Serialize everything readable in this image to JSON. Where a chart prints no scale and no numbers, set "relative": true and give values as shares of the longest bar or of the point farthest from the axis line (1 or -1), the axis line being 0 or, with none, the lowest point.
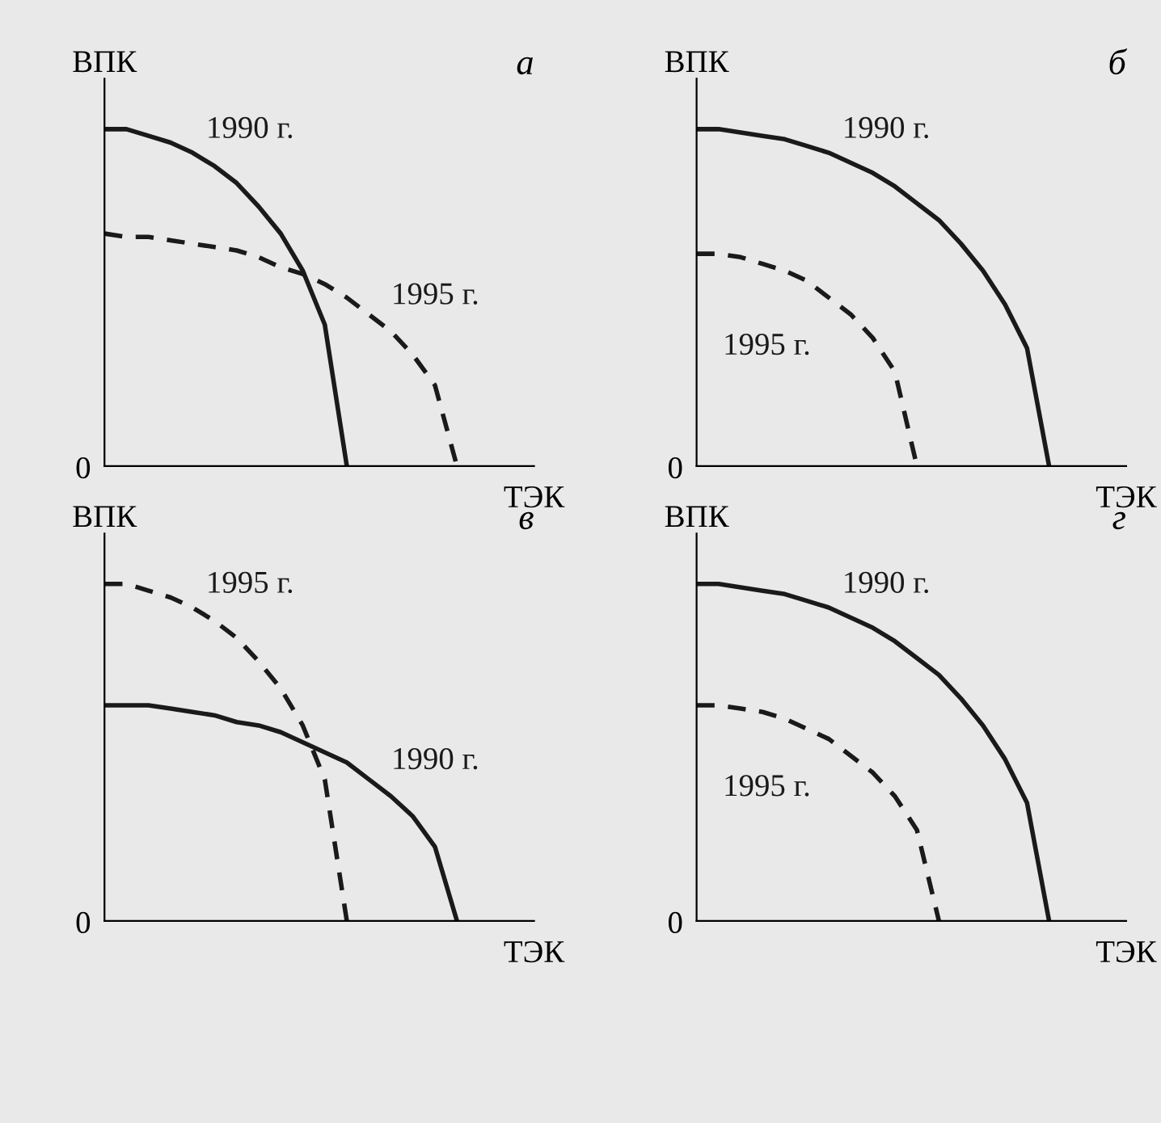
{
  "chart_data": [
    {
      "type": "line",
      "title": "а",
      "xlabel": "ТЭК",
      "ylabel": "ВПК",
      "relative": true,
      "annotations": [
        "0"
      ],
      "categories": [
        null,
        null,
        null,
        null,
        null,
        null,
        null,
        null,
        null,
        null,
        null,
        null,
        null,
        null,
        null,
        null,
        null,
        null,
        null,
        null
      ],
      "series": [
        {
          "name": "1990 г.",
          "color": "#1a1a1a",
          "line_style": "solid",
          "values": [
            1,
            1.0,
            0.98,
            0.96,
            0.93,
            0.89,
            0.84,
            0.77,
            0.69,
            0.58,
            0.42,
            0,
            null,
            null,
            null,
            null,
            null,
            null,
            null,
            null
          ]
        },
        {
          "name": "1995 г.",
          "color": "#1a1a1a",
          "line_style": "dashed",
          "values": [
            0.69,
            0.68,
            0.68,
            0.67,
            0.66,
            0.65,
            0.64,
            0.62,
            0.59,
            0.57,
            0.54,
            0.5,
            0.45,
            0.4,
            0.33,
            0.24,
            0,
            null,
            null,
            null
          ]
        }
      ]
    },
    {
      "type": "line",
      "title": "б",
      "xlabel": "ТЭК",
      "ylabel": "ВПК",
      "relative": true,
      "annotations": [
        "0"
      ],
      "categories": [
        null,
        null,
        null,
        null,
        null,
        null,
        null,
        null,
        null,
        null,
        null,
        null,
        null,
        null,
        null,
        null,
        null,
        null,
        null,
        null
      ],
      "series": [
        {
          "name": "1990 г.",
          "color": "#1a1a1a",
          "line_style": "solid",
          "values": [
            1,
            1.0,
            0.99,
            0.98,
            0.97,
            0.95,
            0.93,
            0.9,
            0.87,
            0.83,
            0.78,
            0.73,
            0.66,
            0.58,
            0.48,
            0.35,
            0,
            null,
            null,
            null
          ]
        },
        {
          "name": "1995 г.",
          "color": "#1a1a1a",
          "line_style": "dashed",
          "values": [
            0.63,
            0.63,
            0.62,
            0.6,
            0.58,
            0.55,
            0.5,
            0.45,
            0.38,
            0.28,
            0,
            null,
            null,
            null,
            null,
            null,
            null,
            null,
            null,
            null
          ]
        }
      ]
    },
    {
      "type": "line",
      "title": "в",
      "xlabel": "ТЭК",
      "ylabel": "ВПК",
      "relative": true,
      "annotations": [
        "0"
      ],
      "categories": [
        null,
        null,
        null,
        null,
        null,
        null,
        null,
        null,
        null,
        null,
        null,
        null,
        null,
        null,
        null,
        null,
        null,
        null,
        null,
        null
      ],
      "series": [
        {
          "name": "1995 г.",
          "color": "#1a1a1a",
          "line_style": "dashed",
          "values": [
            1,
            1.0,
            0.98,
            0.96,
            0.93,
            0.89,
            0.84,
            0.77,
            0.69,
            0.58,
            0.42,
            0,
            null,
            null,
            null,
            null,
            null,
            null,
            null,
            null
          ]
        },
        {
          "name": "1990 г.",
          "color": "#1a1a1a",
          "line_style": "solid",
          "values": [
            0.64,
            0.64,
            0.64,
            0.63,
            0.62,
            0.61,
            0.59,
            0.58,
            0.56,
            0.53,
            0.5,
            0.47,
            0.42,
            0.37,
            0.31,
            0.22,
            0,
            null,
            null,
            null
          ]
        }
      ]
    },
    {
      "type": "line",
      "title": "г",
      "xlabel": "ТЭК",
      "ylabel": "ВПК",
      "relative": true,
      "annotations": [
        "0"
      ],
      "categories": [
        null,
        null,
        null,
        null,
        null,
        null,
        null,
        null,
        null,
        null,
        null,
        null,
        null,
        null,
        null,
        null,
        null,
        null,
        null,
        null
      ],
      "series": [
        {
          "name": "1990 г.",
          "color": "#1a1a1a",
          "line_style": "solid",
          "values": [
            1,
            1.0,
            0.99,
            0.98,
            0.97,
            0.95,
            0.93,
            0.9,
            0.87,
            0.83,
            0.78,
            0.73,
            0.66,
            0.58,
            0.48,
            0.35,
            0,
            null,
            null,
            null
          ]
        },
        {
          "name": "1995 г.",
          "color": "#1a1a1a",
          "line_style": "dashed",
          "values": [
            0.64,
            0.64,
            0.63,
            0.62,
            0.6,
            0.57,
            0.54,
            0.49,
            0.44,
            0.37,
            0.27,
            0,
            null,
            null,
            null,
            null,
            null,
            null,
            null,
            null
          ]
        }
      ]
    }
  ]
}
